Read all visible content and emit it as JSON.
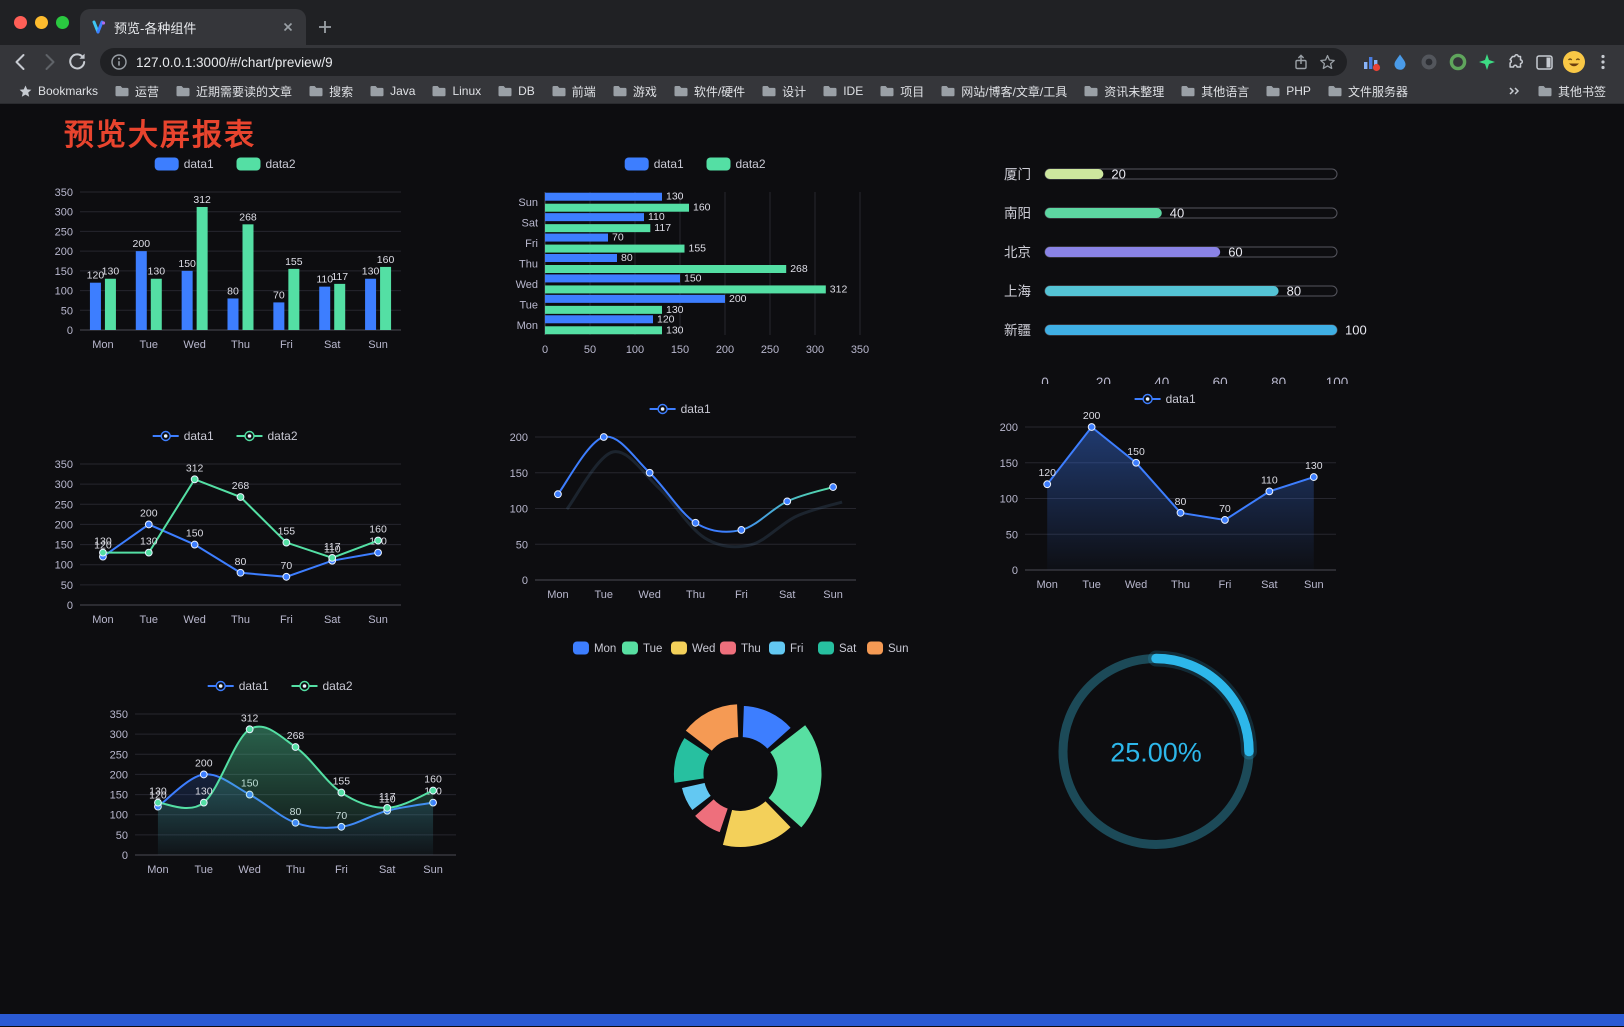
{
  "browser": {
    "traffic_lights": [
      "#ff5f57",
      "#febc2e",
      "#2ac840"
    ],
    "tab": {
      "title": "预览-各种组件"
    },
    "url": "127.0.0.1:3000/#/chart/preview/9",
    "bookmarks_bar": {
      "label": "Bookmarks",
      "folders": [
        "运营",
        "近期需要读的文章",
        "搜索",
        "Java",
        "Linux",
        "DB",
        "前端",
        "游戏",
        "软件/硬件",
        "设计",
        "IDE",
        "项目",
        "网站/博客/文章/工具",
        "资讯未整理",
        "其他语言",
        "PHP",
        "文件服务器"
      ],
      "other": "其他书签"
    }
  },
  "page": {
    "title": "预览大屏报表",
    "title_color": "#e8442e",
    "bottom_bar_color": "#2a5ad4"
  },
  "chart_data": [
    {
      "id": "grouped-bar",
      "type": "bar",
      "categories": [
        "Mon",
        "Tue",
        "Wed",
        "Thu",
        "Fri",
        "Sat",
        "Sun"
      ],
      "series": [
        {
          "name": "data1",
          "color": "#3D7EFF",
          "values": [
            120,
            200,
            150,
            80,
            70,
            110,
            130
          ]
        },
        {
          "name": "data2",
          "color": "#54DFA4",
          "values": [
            130,
            130,
            312,
            268,
            155,
            117,
            160
          ]
        }
      ],
      "ylim": [
        0,
        350
      ],
      "ytick": 50,
      "show_labels": true
    },
    {
      "id": "horizontal-bar",
      "type": "hbar",
      "categories": [
        "Mon",
        "Tue",
        "Wed",
        "Thu",
        "Fri",
        "Sat",
        "Sun"
      ],
      "series": [
        {
          "name": "data1",
          "color": "#3D7EFF",
          "values": [
            120,
            200,
            150,
            80,
            70,
            110,
            130
          ]
        },
        {
          "name": "data2",
          "color": "#54DFA4",
          "values": [
            130,
            130,
            312,
            268,
            155,
            117,
            160
          ]
        }
      ],
      "xlim": [
        0,
        350
      ],
      "xtick": 50,
      "show_labels": true
    },
    {
      "id": "city-progress",
      "type": "progress",
      "max": 100,
      "ticks": [
        0,
        20,
        40,
        60,
        80,
        100
      ],
      "items": [
        {
          "label": "厦门",
          "value": 20,
          "color": "#cde79e"
        },
        {
          "label": "南阳",
          "value": 40,
          "color": "#5dd6a2"
        },
        {
          "label": "北京",
          "value": 60,
          "color": "#8a83e6"
        },
        {
          "label": "上海",
          "value": 80,
          "color": "#54c3d5"
        },
        {
          "label": "新疆",
          "value": 100,
          "color": "#3fafe4"
        }
      ]
    },
    {
      "id": "dual-line",
      "type": "line",
      "smooth": false,
      "categories": [
        "Mon",
        "Tue",
        "Wed",
        "Thu",
        "Fri",
        "Sat",
        "Sun"
      ],
      "series": [
        {
          "name": "data1",
          "color": "#3D7EFF",
          "area": 0,
          "values": [
            120,
            200,
            150,
            80,
            70,
            110,
            130
          ]
        },
        {
          "name": "data2",
          "color": "#54DFA4",
          "area": 0,
          "values": [
            130,
            130,
            312,
            268,
            155,
            117,
            160
          ]
        }
      ],
      "ylim": [
        0,
        350
      ],
      "ytick": 50,
      "show_labels": true
    },
    {
      "id": "gradient-smooth-line",
      "type": "line",
      "smooth": true,
      "echo": true,
      "categories": [
        "Mon",
        "Tue",
        "Wed",
        "Thu",
        "Fri",
        "Sat",
        "Sun"
      ],
      "series": [
        {
          "name": "data1",
          "color": "#3D7EFF",
          "gradient_to": "#54DFA4",
          "area": 0,
          "values": [
            120,
            200,
            150,
            80,
            70,
            110,
            130
          ]
        }
      ],
      "ylim": [
        0,
        200
      ],
      "ytick": 50,
      "show_labels": false
    },
    {
      "id": "area-line",
      "type": "line",
      "smooth": false,
      "categories": [
        "Mon",
        "Tue",
        "Wed",
        "Thu",
        "Fri",
        "Sat",
        "Sun"
      ],
      "series": [
        {
          "name": "data1",
          "color": "#3D7EFF",
          "area": 0.4,
          "values": [
            120,
            200,
            150,
            80,
            70,
            110,
            130
          ]
        }
      ],
      "ylim": [
        0,
        200
      ],
      "ytick": 50,
      "show_labels": true
    },
    {
      "id": "dual-line-green-area",
      "type": "line",
      "smooth": true,
      "categories": [
        "Mon",
        "Tue",
        "Wed",
        "Thu",
        "Fri",
        "Sat",
        "Sun"
      ],
      "series": [
        {
          "name": "data1",
          "color": "#3D7EFF",
          "area": 0.18,
          "values": [
            120,
            200,
            150,
            80,
            70,
            110,
            130
          ]
        },
        {
          "name": "data2",
          "color": "#54DFA4",
          "area": 0.4,
          "values": [
            130,
            130,
            312,
            268,
            155,
            117,
            160
          ]
        }
      ],
      "ylim": [
        0,
        350
      ],
      "ytick": 50,
      "show_labels": true
    },
    {
      "id": "rose-donut",
      "type": "rose",
      "items": [
        {
          "label": "Mon",
          "value": 120,
          "color": "#3D7EFF"
        },
        {
          "label": "Tue",
          "value": 200,
          "color": "#58DFA2"
        },
        {
          "label": "Wed",
          "value": 150,
          "color": "#F3D05A"
        },
        {
          "label": "Thu",
          "value": 80,
          "color": "#EE6F7C"
        },
        {
          "label": "Fri",
          "value": 70,
          "color": "#63C8F2"
        },
        {
          "label": "Sat",
          "value": 110,
          "color": "#27C0A0"
        },
        {
          "label": "Sun",
          "value": 130,
          "color": "#F59A54"
        }
      ]
    },
    {
      "id": "gauge",
      "type": "gauge",
      "percent": 25,
      "value_label": "25.00%",
      "color": "#2DB7EA",
      "track": "#1C4A58"
    }
  ]
}
